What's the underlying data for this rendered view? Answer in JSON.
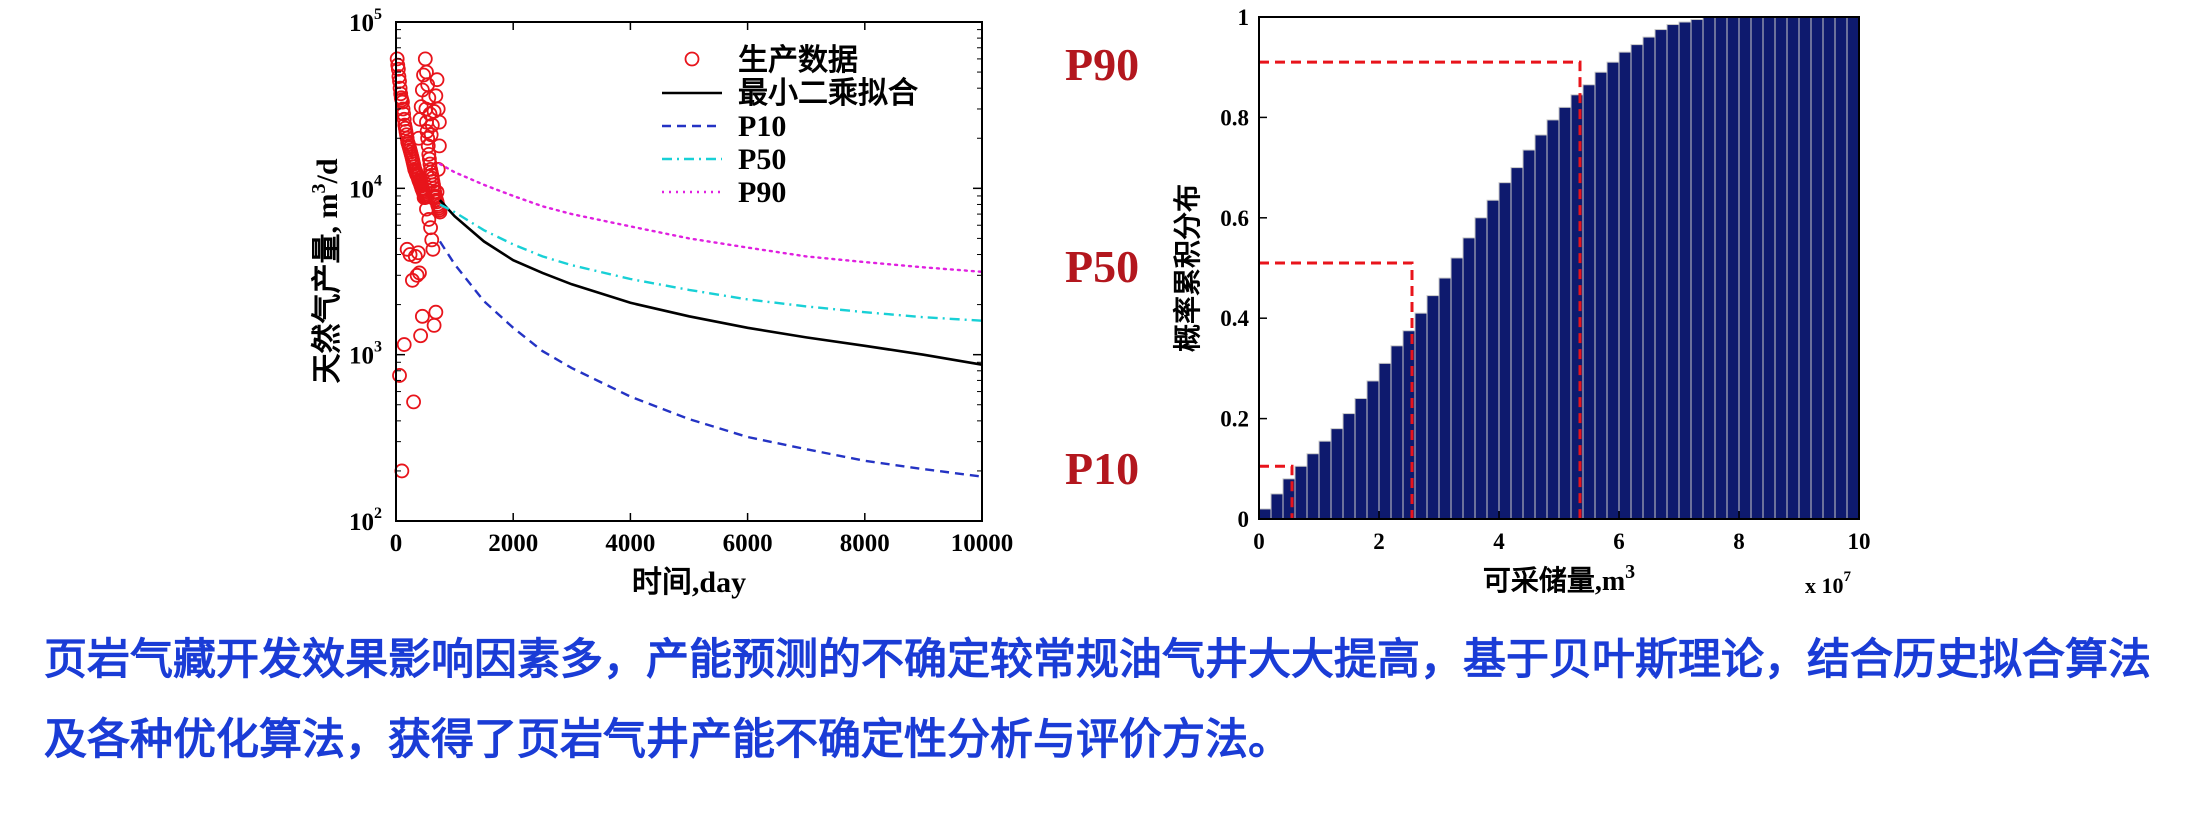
{
  "charts": [
    {
      "chart_data": {
        "type": "scatter",
        "xlabel": "时间,day",
        "ylabel": "天然气产量, m³/d",
        "xlim": [
          0,
          10000
        ],
        "ylim": [
          100,
          100000
        ],
        "yscale": "log",
        "xticks": [
          0,
          2000,
          4000,
          6000,
          8000,
          10000
        ],
        "yticks": [
          100,
          1000,
          10000,
          100000
        ],
        "ytick_labels": [
          {
            "base": "10",
            "exp": "2"
          },
          {
            "base": "10",
            "exp": "3"
          },
          {
            "base": "10",
            "exp": "4"
          },
          {
            "base": "10",
            "exp": "5"
          }
        ],
        "legend_position": "top-right",
        "series": [
          {
            "name": "生产数据",
            "style": "circle-marker",
            "color": "#e8141b",
            "x": [
              20,
              30,
              40,
              50,
              60,
              70,
              80,
              90,
              100,
              110,
              120,
              130,
              140,
              150,
              160,
              170,
              180,
              190,
              200,
              210,
              220,
              230,
              240,
              250,
              260,
              270,
              280,
              290,
              300,
              310,
              320,
              330,
              340,
              350,
              360,
              370,
              380,
              390,
              400,
              410,
              420,
              430,
              440,
              450,
              460,
              470,
              480,
              490,
              500,
              510,
              520,
              530,
              540,
              550,
              560,
              570,
              580,
              590,
              600,
              610,
              620,
              630,
              640,
              650,
              660,
              670,
              680,
              690,
              700,
              710,
              720,
              730,
              740,
              750,
              60,
              100,
              140,
              190,
              240,
              280,
              300,
              330,
              360,
              380,
              400,
              420,
              450,
              480,
              520,
              560,
              590,
              610,
              630,
              650,
              680,
              700,
              720,
              740,
              740,
              720,
              700,
              680,
              650,
              620,
              600,
              580,
              560,
              540,
              520,
              500,
              470,
              450,
              430,
              410,
              390
            ],
            "y": [
              60000,
              55000,
              52000,
              47000,
              44000,
              40000,
              37000,
              35000,
              34000,
              33000,
              30000,
              28000,
              26000,
              24000,
              23000,
              22000,
              21000,
              20000,
              19000,
              18500,
              18000,
              17500,
              17000,
              16500,
              16000,
              15500,
              15000,
              14500,
              14000,
              13500,
              13000,
              12800,
              12500,
              12200,
              12000,
              11800,
              11500,
              11200,
              11000,
              10800,
              10500,
              10300,
              10000,
              9800,
              9600,
              9400,
              9200,
              9000,
              8800,
              30000,
              25000,
              22000,
              20000,
              18000,
              16000,
              15000,
              14000,
              13000,
              12500,
              12000,
              11500,
              11000,
              10500,
              10000,
              9500,
              9000,
              8800,
              8500,
              8300,
              8000,
              7800,
              7600,
              7400,
              7200,
              750,
              200,
              1150,
              4300,
              4000,
              2800,
              520,
              3900,
              3000,
              4100,
              3100,
              1300,
              1700,
              8800,
              7500,
              6500,
              5800,
              4900,
              4300,
              1500,
              1800,
              9500,
              13000,
              18000,
              25000,
              30000,
              45000,
              36000,
              29000,
              24000,
              21000,
              28000,
              35000,
              42000,
              50000,
              60000,
              48000,
              39000,
              31000,
              26000,
              20000
            ]
          },
          {
            "name": "最小二乘拟合",
            "style": "solid",
            "color": "#000000",
            "x": [
              750,
              1000,
              1500,
              2000,
              2500,
              3000,
              4000,
              5000,
              6000,
              7000,
              8000,
              9000,
              10000
            ],
            "y": [
              8500,
              6800,
              4800,
              3700,
              3100,
              2650,
              2050,
              1700,
              1450,
              1270,
              1130,
              1000,
              870
            ]
          },
          {
            "name": "P10",
            "style": "dashed",
            "color": "#2433c4",
            "x": [
              750,
              1000,
              1500,
              2000,
              2500,
              3000,
              4000,
              5000,
              6000,
              7000,
              8000,
              9000,
              10000
            ],
            "y": [
              4800,
              3500,
              2100,
              1450,
              1050,
              830,
              560,
              410,
              320,
              270,
              230,
              205,
              185
            ]
          },
          {
            "name": "P50",
            "style": "dash-dot",
            "color": "#18d0d6",
            "x": [
              750,
              1000,
              1500,
              2000,
              2500,
              3000,
              4000,
              5000,
              6000,
              7000,
              8000,
              9000,
              10000
            ],
            "y": [
              8000,
              7200,
              5600,
              4600,
              3900,
              3450,
              2850,
              2450,
              2150,
              1950,
              1800,
              1680,
              1600
            ]
          },
          {
            "name": "P90",
            "style": "dotted",
            "color": "#e020e0",
            "x": [
              750,
              1000,
              1500,
              2000,
              2500,
              3000,
              4000,
              5000,
              6000,
              7000,
              8000,
              9000,
              10000
            ],
            "y": [
              14000,
              12500,
              10500,
              9000,
              7800,
              7000,
              5900,
              5000,
              4400,
              3900,
              3600,
              3350,
              3150
            ]
          }
        ]
      }
    },
    {
      "chart_data": {
        "type": "bar",
        "xlabel": "可采储量,m³",
        "ylabel": "概率累积分布",
        "x_multiplier_text": "x 10",
        "x_multiplier_exp": "7",
        "xlim": [
          0,
          10
        ],
        "ylim": [
          0,
          1
        ],
        "xticks": [
          0,
          2,
          4,
          6,
          8,
          10
        ],
        "yticks": [
          0,
          0.2,
          0.4,
          0.6,
          0.8,
          1
        ],
        "bar_color": "#0e1a6e",
        "bar_edge_color": "#c8c8c8",
        "bar_width": 0.2,
        "x": [
          0.1,
          0.3,
          0.5,
          0.7,
          0.9,
          1.1,
          1.3,
          1.5,
          1.7,
          1.9,
          2.1,
          2.3,
          2.5,
          2.7,
          2.9,
          3.1,
          3.3,
          3.5,
          3.7,
          3.9,
          4.1,
          4.3,
          4.5,
          4.7,
          4.9,
          5.1,
          5.3,
          5.5,
          5.7,
          5.9,
          6.1,
          6.3,
          6.5,
          6.7,
          6.9,
          7.1,
          7.3,
          7.5,
          7.7,
          7.9,
          8.1,
          8.3,
          8.5,
          8.7,
          8.9,
          9.1,
          9.3,
          9.5,
          9.7,
          9.9
        ],
        "values": [
          0.02,
          0.05,
          0.08,
          0.105,
          0.13,
          0.155,
          0.18,
          0.21,
          0.24,
          0.275,
          0.31,
          0.345,
          0.375,
          0.41,
          0.445,
          0.48,
          0.52,
          0.56,
          0.6,
          0.635,
          0.67,
          0.7,
          0.735,
          0.765,
          0.795,
          0.82,
          0.845,
          0.865,
          0.89,
          0.91,
          0.93,
          0.945,
          0.96,
          0.975,
          0.985,
          0.99,
          0.995,
          1,
          1,
          1,
          1,
          1,
          1,
          1,
          1,
          1,
          1,
          1,
          1,
          1
        ],
        "reference_lines": [
          {
            "label": "P90",
            "x": 5.35,
            "y": 0.91
          },
          {
            "label": "P50",
            "x": 2.55,
            "y": 0.51
          },
          {
            "label": "P10",
            "x": 0.55,
            "y": 0.105
          }
        ],
        "reference_color": "#e8141b"
      }
    }
  ],
  "side_labels": [
    "P90",
    "P50",
    "P10"
  ],
  "caption": "页岩气藏开发效果影响因素多，产能预测的不确定较常规油气井大大提高，基于贝叶斯理论，结合历史拟合算法及各种优化算法，获得了页岩气井产能不确定性分析与评价方法。"
}
